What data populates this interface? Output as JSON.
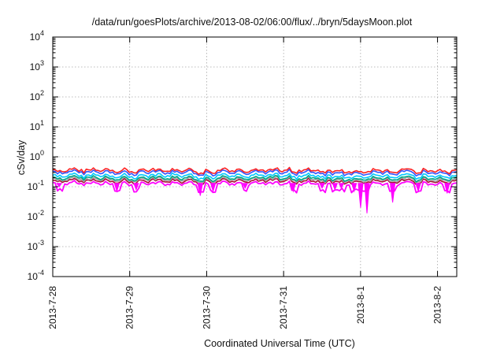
{
  "title": "/data/run/goesPlots/archive/2013-08-02/06:00/flux/../bryn/5daysMoon.plot",
  "chart_data": {
    "type": "line",
    "title": "/data/run/goesPlots/archive/2013-08-02/06:00/flux/../bryn/5daysMoon.plot",
    "xlabel": "Coordinated Universal Time (UTC)",
    "ylabel": "cSv/day",
    "x_range": [
      "2013-07-28",
      "2013-08-02 06:00"
    ],
    "y_range": [
      0.0001,
      10000
    ],
    "y_scale": "log",
    "grid": true,
    "x_ticks": [
      "2013-7-28",
      "2013-7-29",
      "2013-7-30",
      "2013-7-31",
      "2013-8-1",
      "2013-8-2"
    ],
    "y_ticks": [
      {
        "base": "10",
        "exp": "-4"
      },
      {
        "base": "10",
        "exp": "-3"
      },
      {
        "base": "10",
        "exp": "-2"
      },
      {
        "base": "10",
        "exp": "-1"
      },
      {
        "base": "10",
        "exp": "0"
      },
      {
        "base": "10",
        "exp": "1"
      },
      {
        "base": "10",
        "exp": "2"
      },
      {
        "base": "10",
        "exp": "3"
      },
      {
        "base": "10",
        "exp": "4"
      }
    ],
    "series": [
      {
        "color": "#ff2222",
        "level": 0.36
      },
      {
        "color": "#3355ff",
        "level": 0.31
      },
      {
        "color": "#00c8ff",
        "level": 0.24
      },
      {
        "color": "#00aa88",
        "level": 0.2
      },
      {
        "color": "#a0a0a0",
        "level": 0.18
      },
      {
        "color": "#aa1133",
        "level": 0.16
      },
      {
        "color": "#ff00ff",
        "level": 0.13
      }
    ],
    "dips": [
      {
        "date": "2013-07-28 02:00",
        "value": 0.1
      },
      {
        "date": "2013-07-28 20:00",
        "value": 0.07
      },
      {
        "date": "2013-07-29 02:00",
        "value": 0.08
      },
      {
        "date": "2013-07-29 22:00",
        "value": 0.05
      },
      {
        "date": "2013-07-30 02:00",
        "value": 0.07
      },
      {
        "date": "2013-07-30 12:00",
        "value": 0.09
      },
      {
        "date": "2013-07-31 03:00",
        "value": 0.07
      },
      {
        "date": "2013-07-31 12:00",
        "value": 0.09
      },
      {
        "date": "2013-07-31 16:00",
        "value": 0.08
      },
      {
        "date": "2013-07-31 18:00",
        "value": 0.09
      },
      {
        "date": "2013-07-31 22:00",
        "value": 0.07
      },
      {
        "date": "2013-08-01 00:00",
        "value": 0.02
      },
      {
        "date": "2013-08-01 02:00",
        "value": 0.013
      },
      {
        "date": "2013-08-01 10:00",
        "value": 0.03
      },
      {
        "date": "2013-08-01 18:00",
        "value": 0.07
      },
      {
        "date": "2013-08-02 03:00",
        "value": 0.06
      }
    ]
  }
}
